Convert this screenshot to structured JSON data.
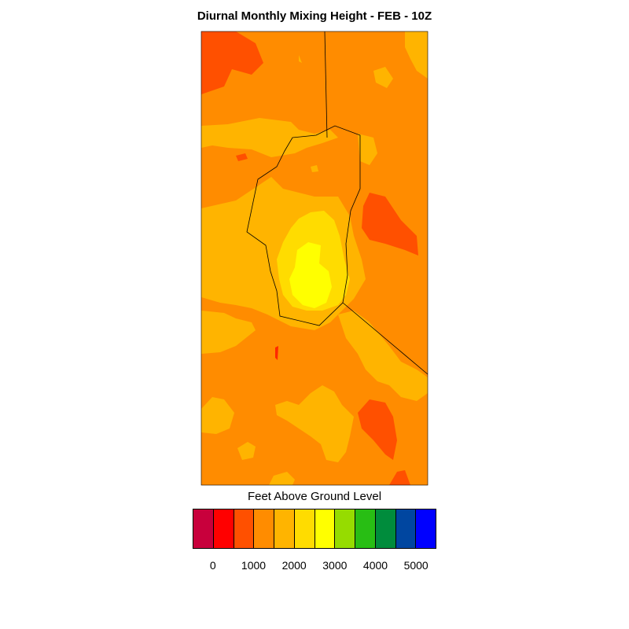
{
  "title": "Diurnal Monthly Mixing Height - FEB - 10Z",
  "colorbar": {
    "title": "Feet Above Ground Level",
    "colors": [
      "#c8003c",
      "#ff0000",
      "#ff5000",
      "#ff8c00",
      "#ffb400",
      "#ffdc00",
      "#ffff00",
      "#96dc00",
      "#28be14",
      "#008c3c",
      "#0046a0",
      "#0000ff"
    ],
    "labels": [
      "0",
      "1000",
      "2000",
      "3000",
      "4000",
      "5000"
    ]
  },
  "map": {
    "background_fill": "#ff8c00",
    "fill_colors": {
      "orange_red": "#ff5000",
      "red": "#ff2800",
      "amber": "#ffb400",
      "gold": "#ffdc00",
      "yellow": "#ffff00"
    },
    "boundary_color": "#000000"
  }
}
